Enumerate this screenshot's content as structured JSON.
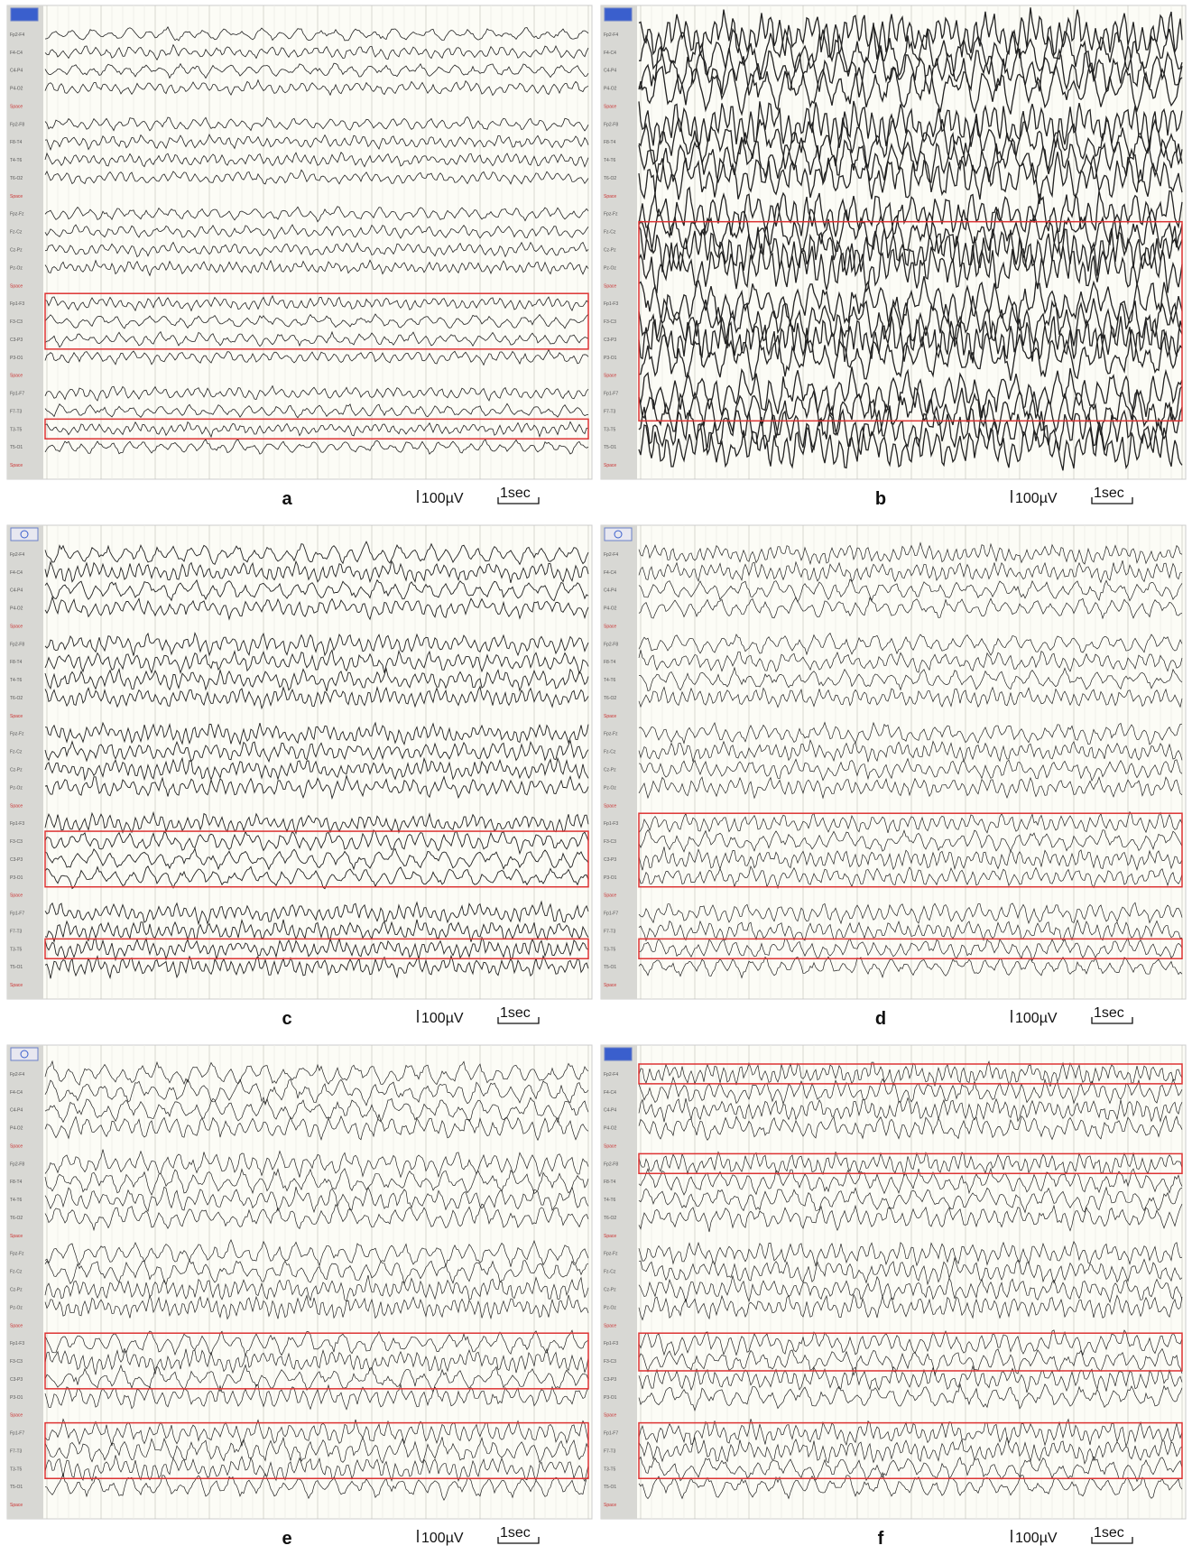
{
  "channels": [
    "Fp2-F4",
    "F4-C4",
    "C4-P4",
    "P4-O2",
    "Space",
    "Fp2-F8",
    "F8-T4",
    "T4-T6",
    "T6-O2",
    "Space",
    "Fpz-Fz",
    "Fz-Cz",
    "Cz-Pz",
    "Pz-Oz",
    "Space",
    "Fp1-F3",
    "F3-C3",
    "C3-P3",
    "P3-O1",
    "Space",
    "Fp1-F7",
    "F7-T3",
    "T3-T5",
    "T5-O1",
    "Space"
  ],
  "panels": [
    {
      "label": "a",
      "amplitude_scale": "100µV",
      "time_scale": "1sec"
    },
    {
      "label": "b",
      "amplitude_scale": "100µV",
      "time_scale": "1sec"
    },
    {
      "label": "c",
      "amplitude_scale": "100µV",
      "time_scale": "1sec"
    },
    {
      "label": "d",
      "amplitude_scale": "100µV",
      "time_scale": "1sec"
    },
    {
      "label": "e",
      "amplitude_scale": "100µV",
      "time_scale": "1sec"
    },
    {
      "label": "f",
      "amplitude_scale": "100µV",
      "time_scale": "1sec"
    }
  ]
}
